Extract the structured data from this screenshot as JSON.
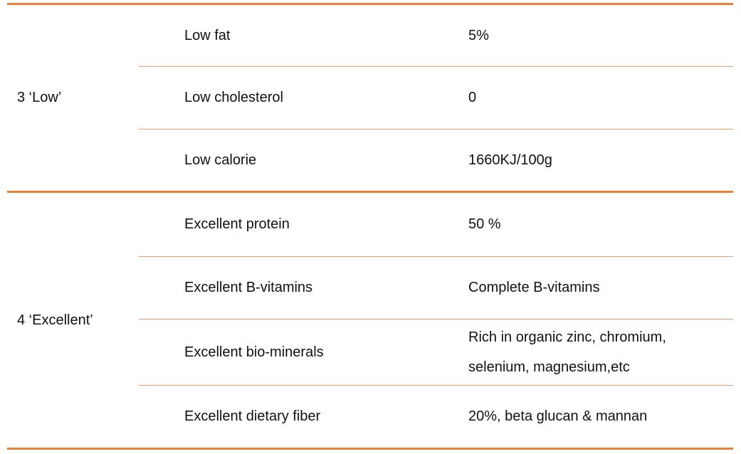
{
  "table": {
    "groups": [
      {
        "label": "3 ‘Low’",
        "rows": [
          [
            "Low fat",
            "5%"
          ],
          [
            "Low cholesterol",
            "0"
          ],
          [
            "Low calorie",
            "1660KJ/100g"
          ]
        ]
      },
      {
        "label": "4 ‘Excellent’",
        "rows": [
          [
            "Excellent protein",
            "50 %"
          ],
          [
            "Excellent B-vitamins",
            "Complete B-vitamins"
          ],
          [
            "Excellent bio-minerals",
            "Rich in organic zinc, chromium, selenium, magnesium,etc"
          ],
          [
            "Excellent dietary fiber",
            "20%, beta glucan & mannan"
          ]
        ]
      }
    ]
  }
}
